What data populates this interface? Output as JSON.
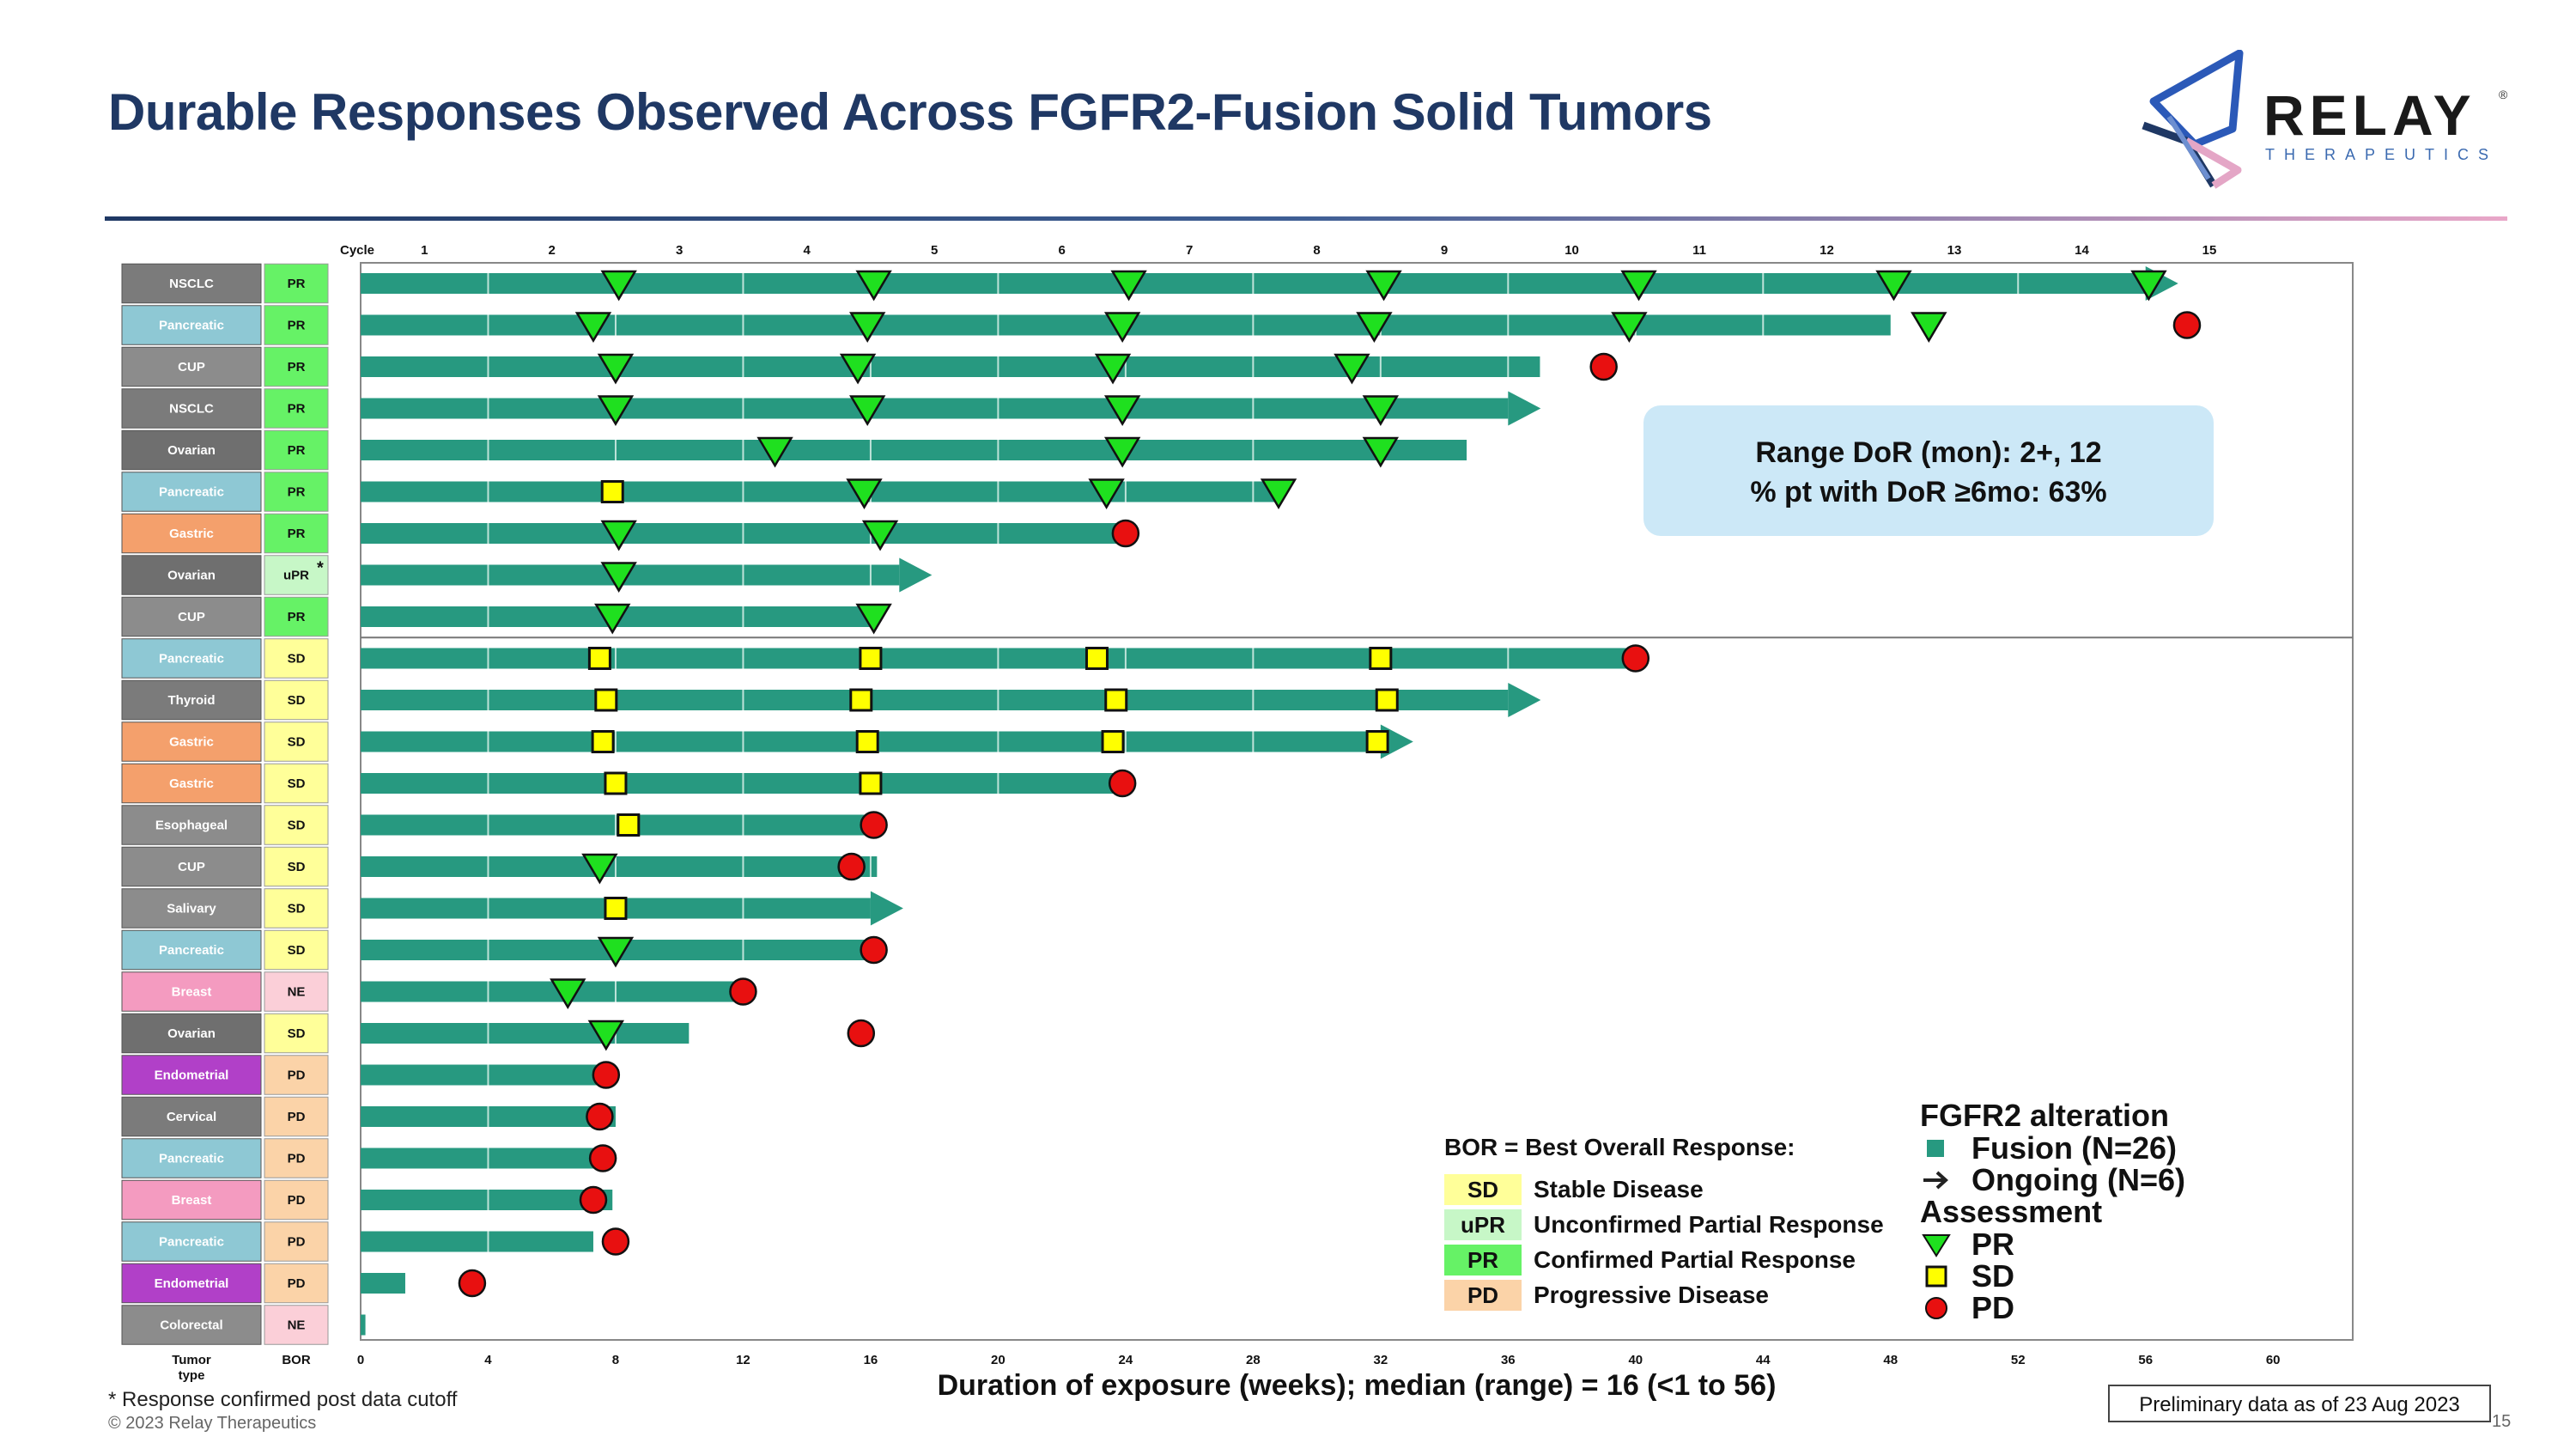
{
  "title": "Durable Responses Observed Across FGFR2-Fusion Solid Tumors",
  "logo": {
    "word": "RELAY",
    "reg": "®",
    "sub": "THERAPEUTICS"
  },
  "colors": {
    "bar": "#279980",
    "pr": "#1fe01f",
    "sd": "#ffff00",
    "pd": "#e81010",
    "tumor": {
      "NSCLC": "#7b7b7b",
      "Pancreatic": "#8ec8d4",
      "CUP": "#8c8c8c",
      "Ovarian": "#6f6f6f",
      "Gastric": "#f4a06c",
      "Thyroid": "#7b7b7b",
      "Esophageal": "#8c8c8c",
      "Salivary": "#8c8c8c",
      "Breast": "#f49bc0",
      "Endometrial": "#b140c8",
      "Cervical": "#7b7b7b",
      "Colorectal": "#8c8c8c"
    },
    "bor": {
      "PR": "#66f266",
      "uPR": "#c7f7c7",
      "SD": "#ffff99",
      "NE": "#fbcfd8",
      "PD": "#fbd3a8"
    }
  },
  "chart_data": {
    "type": "swimmer",
    "xlabel": "Duration of exposure (weeks); median (range) = 16 (<1 to 56)",
    "x_ticks": [
      0,
      4,
      8,
      12,
      16,
      20,
      24,
      28,
      32,
      36,
      40,
      44,
      48,
      52,
      56,
      60
    ],
    "xlim": [
      0,
      62.5
    ],
    "cycle_label": "Cycle",
    "cycle_ticks": [
      1,
      2,
      3,
      4,
      5,
      6,
      7,
      8,
      9,
      10,
      11,
      12,
      13,
      14,
      15
    ],
    "cycle_weeks": 4,
    "col_headers": {
      "tumor": "Tumor type",
      "bor": "BOR"
    },
    "patients": [
      {
        "tumor": "NSCLC",
        "bor": "PR",
        "duration": 56,
        "ongoing": true,
        "events": [
          [
            "PR",
            8.1
          ],
          [
            "PR",
            16.1
          ],
          [
            "PR",
            24.1
          ],
          [
            "PR",
            32.1
          ],
          [
            "PR",
            40.1
          ],
          [
            "PR",
            48.1
          ],
          [
            "PR",
            56.1
          ]
        ]
      },
      {
        "tumor": "Pancreatic",
        "bor": "PR",
        "duration": 48,
        "ongoing": false,
        "events": [
          [
            "PR",
            7.3
          ],
          [
            "PR",
            15.9
          ],
          [
            "PR",
            23.9
          ],
          [
            "PR",
            31.8
          ],
          [
            "PR",
            39.8
          ],
          [
            "PR",
            49.2
          ],
          [
            "PD",
            57.3
          ]
        ]
      },
      {
        "tumor": "CUP",
        "bor": "PR",
        "duration": 37,
        "ongoing": false,
        "events": [
          [
            "PR",
            8.0
          ],
          [
            "PR",
            15.6
          ],
          [
            "PR",
            23.6
          ],
          [
            "PR",
            31.1
          ],
          [
            "PD",
            39.0
          ]
        ]
      },
      {
        "tumor": "NSCLC",
        "bor": "PR",
        "duration": 36,
        "ongoing": true,
        "events": [
          [
            "PR",
            8.0
          ],
          [
            "PR",
            15.9
          ],
          [
            "PR",
            23.9
          ],
          [
            "PR",
            32.0
          ]
        ]
      },
      {
        "tumor": "Ovarian",
        "bor": "PR",
        "duration": 34.7,
        "ongoing": false,
        "events": [
          [
            "PR",
            13.0
          ],
          [
            "PR",
            23.9
          ],
          [
            "PR",
            32.0
          ]
        ]
      },
      {
        "tumor": "Pancreatic",
        "bor": "PR",
        "duration": 28.7,
        "ongoing": false,
        "events": [
          [
            "SD",
            7.9
          ],
          [
            "PR",
            15.8
          ],
          [
            "PR",
            23.4
          ],
          [
            "PR",
            28.8
          ]
        ]
      },
      {
        "tumor": "Gastric",
        "bor": "PR",
        "duration": 24,
        "ongoing": false,
        "events": [
          [
            "PR",
            8.1
          ],
          [
            "PR",
            16.3
          ],
          [
            "PD",
            24.0
          ]
        ]
      },
      {
        "tumor": "Ovarian",
        "bor": "uPR",
        "note": "*",
        "duration": 16.9,
        "ongoing": true,
        "events": [
          [
            "PR",
            8.1
          ]
        ]
      },
      {
        "tumor": "CUP",
        "bor": "PR",
        "duration": 16,
        "ongoing": false,
        "events": [
          [
            "PR",
            7.9
          ],
          [
            "PR",
            16.1
          ]
        ]
      },
      {
        "tumor": "Pancreatic",
        "bor": "SD",
        "duration": 40,
        "ongoing": false,
        "events": [
          [
            "SD",
            7.5
          ],
          [
            "SD",
            16.0
          ],
          [
            "SD",
            23.1
          ],
          [
            "SD",
            32.0
          ],
          [
            "PD",
            40.0
          ]
        ]
      },
      {
        "tumor": "Thyroid",
        "bor": "SD",
        "duration": 36,
        "ongoing": true,
        "events": [
          [
            "SD",
            7.7
          ],
          [
            "SD",
            15.7
          ],
          [
            "SD",
            23.7
          ],
          [
            "SD",
            32.2
          ]
        ]
      },
      {
        "tumor": "Gastric",
        "bor": "SD",
        "duration": 32,
        "ongoing": true,
        "events": [
          [
            "SD",
            7.6
          ],
          [
            "SD",
            15.9
          ],
          [
            "SD",
            23.6
          ],
          [
            "SD",
            31.9
          ]
        ]
      },
      {
        "tumor": "Gastric",
        "bor": "SD",
        "duration": 24,
        "ongoing": false,
        "events": [
          [
            "SD",
            8.0
          ],
          [
            "SD",
            16.0
          ],
          [
            "PD",
            23.9
          ]
        ]
      },
      {
        "tumor": "Esophageal",
        "bor": "SD",
        "duration": 16,
        "ongoing": false,
        "events": [
          [
            "SD",
            8.4
          ],
          [
            "PD",
            16.1
          ]
        ]
      },
      {
        "tumor": "CUP",
        "bor": "SD",
        "duration": 16.2,
        "ongoing": false,
        "events": [
          [
            "PR",
            7.5
          ],
          [
            "PD",
            15.4
          ]
        ]
      },
      {
        "tumor": "Salivary",
        "bor": "SD",
        "duration": 16,
        "ongoing": true,
        "events": [
          [
            "SD",
            8.0
          ]
        ]
      },
      {
        "tumor": "Pancreatic",
        "bor": "SD",
        "duration": 16,
        "ongoing": false,
        "events": [
          [
            "PR",
            8.0
          ],
          [
            "PD",
            16.1
          ]
        ]
      },
      {
        "tumor": "Breast",
        "bor": "NE",
        "duration": 12,
        "ongoing": false,
        "events": [
          [
            "PR",
            6.5
          ],
          [
            "PD",
            12.0
          ]
        ]
      },
      {
        "tumor": "Ovarian",
        "bor": "SD",
        "duration": 10.3,
        "ongoing": false,
        "events": [
          [
            "PR",
            7.7
          ],
          [
            "PD",
            15.7
          ]
        ]
      },
      {
        "tumor": "Endometrial",
        "bor": "PD",
        "duration": 7.8,
        "ongoing": false,
        "events": [
          [
            "PD",
            7.7
          ]
        ]
      },
      {
        "tumor": "Cervical",
        "bor": "PD",
        "duration": 8,
        "ongoing": false,
        "events": [
          [
            "PD",
            7.5
          ]
        ]
      },
      {
        "tumor": "Pancreatic",
        "bor": "PD",
        "duration": 7.6,
        "ongoing": false,
        "events": [
          [
            "PD",
            7.6
          ]
        ]
      },
      {
        "tumor": "Breast",
        "bor": "PD",
        "duration": 7.9,
        "ongoing": false,
        "events": [
          [
            "PD",
            7.3
          ]
        ]
      },
      {
        "tumor": "Pancreatic",
        "bor": "PD",
        "duration": 7.3,
        "ongoing": false,
        "events": [
          [
            "PD",
            8.0
          ]
        ]
      },
      {
        "tumor": "Endometrial",
        "bor": "PD",
        "duration": 1.4,
        "ongoing": false,
        "events": [
          [
            "PD",
            3.5
          ]
        ]
      },
      {
        "tumor": "Colorectal",
        "bor": "NE",
        "duration": 0.15,
        "ongoing": false,
        "events": []
      }
    ]
  },
  "callout": {
    "line1": "Range DoR (mon): 2+, 12",
    "line2": "% pt with DoR ≥6mo: 63%"
  },
  "bor_legend": {
    "title": "BOR = Best Overall Response:",
    "items": [
      {
        "code": "SD",
        "label": "Stable Disease"
      },
      {
        "code": "uPR",
        "label": "Unconfirmed Partial Response"
      },
      {
        "code": "PR",
        "label": "Confirmed Partial Response"
      },
      {
        "code": "PD",
        "label": "Progressive Disease"
      }
    ]
  },
  "fgfr2_legend": {
    "title": "FGFR2 alteration",
    "fusion": "Fusion (N=26)",
    "ongoing": "Ongoing (N=6)",
    "assessment": "Assessment",
    "pr": "PR",
    "sd": "SD",
    "pd": "PD"
  },
  "footnote": "* Response confirmed post data cutoff",
  "copyright": "© 2023 Relay Therapeutics",
  "prelim": "Preliminary data as of 23 Aug 2023",
  "page_number": "15"
}
